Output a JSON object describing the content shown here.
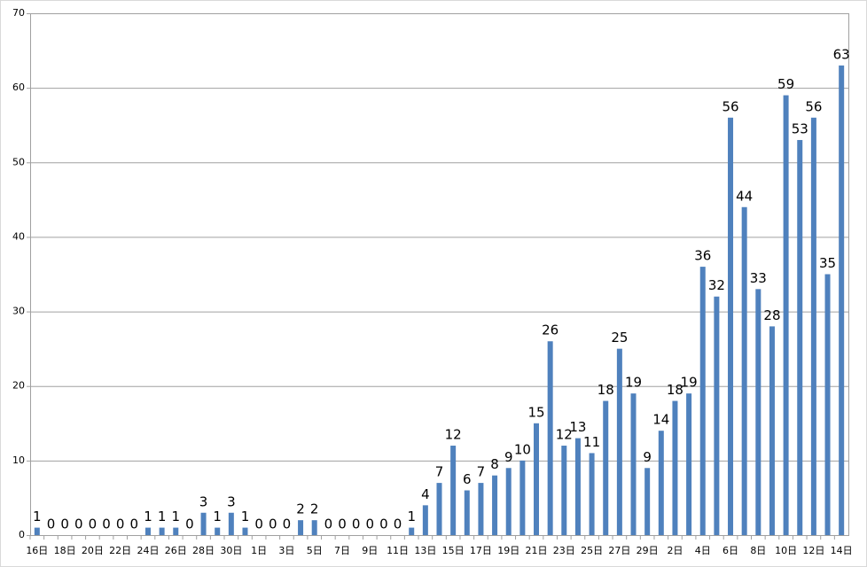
{
  "chart_data": {
    "type": "bar",
    "categories": [
      "16日",
      null,
      "18日",
      null,
      "20日",
      null,
      "22日",
      null,
      "24日",
      null,
      "26日",
      null,
      "28日",
      null,
      "30日",
      null,
      "1日",
      null,
      "3日",
      null,
      "5日",
      null,
      "7日",
      null,
      "9日",
      null,
      "11日",
      null,
      "13日",
      null,
      "15日",
      null,
      "17日",
      null,
      "19日",
      null,
      "21日",
      null,
      "23日",
      null,
      "25日",
      null,
      "27日",
      null,
      "29日",
      null,
      "2日",
      null,
      "4日",
      null,
      "6日",
      null,
      "8日",
      null,
      "10日",
      null,
      "12日",
      null,
      "14日"
    ],
    "values": [
      1,
      0,
      0,
      0,
      0,
      0,
      0,
      0,
      1,
      1,
      1,
      0,
      3,
      1,
      3,
      1,
      0,
      0,
      0,
      2,
      2,
      0,
      0,
      0,
      0,
      0,
      0,
      1,
      4,
      7,
      12,
      6,
      7,
      8,
      9,
      10,
      15,
      26,
      12,
      13,
      11,
      18,
      25,
      19,
      9,
      14,
      18,
      19,
      36,
      32,
      56,
      44,
      33,
      28,
      59,
      53,
      56,
      35,
      63
    ],
    "color": "#4f81bd",
    "ylim": [
      0,
      70
    ],
    "yticks": [
      0,
      10,
      20,
      30,
      40,
      50,
      60,
      70
    ],
    "grid": true
  }
}
